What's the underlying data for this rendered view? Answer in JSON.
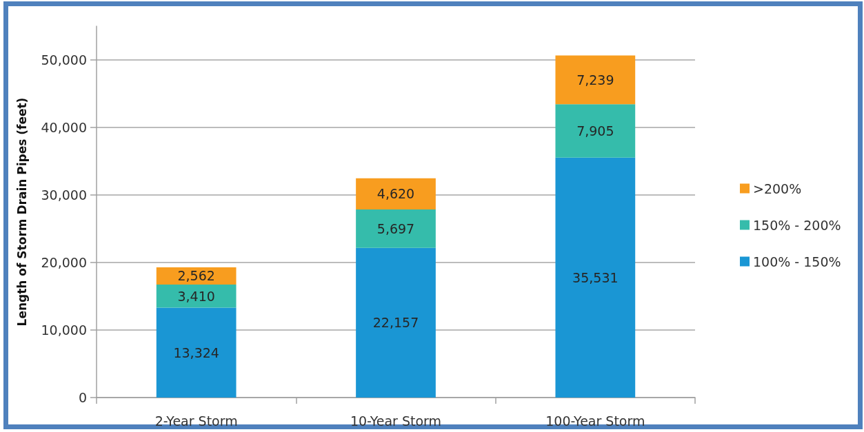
{
  "chart_data": {
    "type": "bar",
    "stacked": true,
    "ylabel": "Length of Storm Drain Pipes (feet)",
    "categories": [
      "2-Year Storm",
      "10-Year Storm",
      "100-Year Storm"
    ],
    "series": [
      {
        "name": "100% - 150%",
        "color": "#1a96d4",
        "values": [
          13324,
          22157,
          35531
        ],
        "value_labels": [
          "13,324",
          "22,157",
          "35,531"
        ]
      },
      {
        "name": "150% - 200%",
        "color": "#35bcab",
        "values": [
          3410,
          5697,
          7905
        ],
        "value_labels": [
          "3,410",
          "5,697",
          "7,905"
        ]
      },
      {
        "name": ">200%",
        "color": "#f89d1f",
        "values": [
          2562,
          4620,
          7239
        ],
        "value_labels": [
          "2,562",
          "4,620",
          "7,239"
        ]
      }
    ],
    "ylim": [
      0,
      55000
    ],
    "yticks": [
      0,
      {
        "value": 10000,
        "label": "10,000"
      },
      {
        "value": 20000,
        "label": "20,000"
      },
      {
        "value": 30000,
        "label": "30,000"
      },
      {
        "value": 40000,
        "label": "40,000"
      },
      {
        "value": 50000,
        "label": "50,000"
      }
    ],
    "grid": "y",
    "legend": "right"
  }
}
